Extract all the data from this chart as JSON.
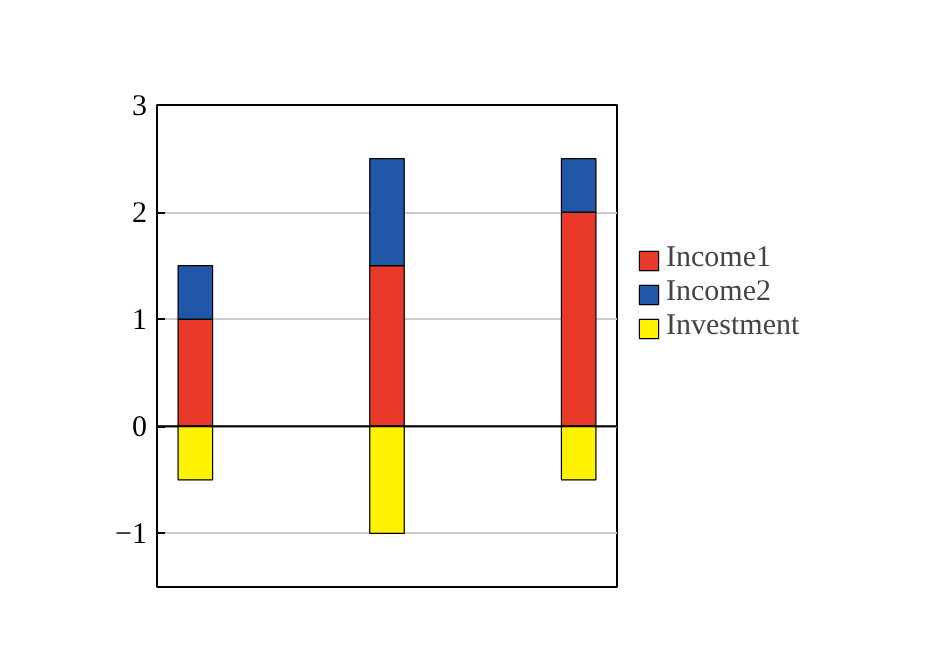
{
  "chart_data": {
    "type": "bar",
    "stacked": true,
    "categories": [
      null,
      null,
      null
    ],
    "series": [
      {
        "name": "Income1",
        "color": "#e8392a",
        "values": [
          1,
          1.5,
          2
        ]
      },
      {
        "name": "Income2",
        "color": "#2157a8",
        "values": [
          0.5,
          1,
          0.5
        ]
      },
      {
        "name": "Investment",
        "color": "#fff200",
        "values": [
          -0.5,
          -1,
          -0.5
        ]
      }
    ],
    "ylim": [
      -1.5,
      3
    ],
    "yticks": [
      -1,
      0,
      1,
      2,
      3
    ],
    "grid": "y",
    "legend": "right",
    "ref_lines": [
      {
        "axis": "y",
        "value": 0,
        "color": "#000000"
      }
    ]
  }
}
